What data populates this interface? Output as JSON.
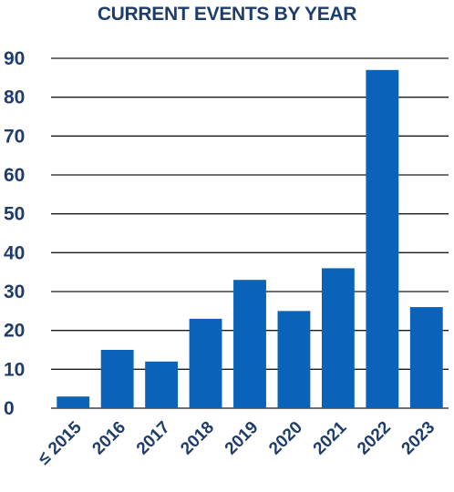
{
  "chart_data": {
    "type": "bar",
    "title": "CURRENT EVENTS BY YEAR",
    "xlabel": "",
    "ylabel": "",
    "categories": [
      "≤ 2015",
      "2016",
      "2017",
      "2018",
      "2019",
      "2020",
      "2021",
      "2022",
      "2023"
    ],
    "values": [
      3,
      15,
      12,
      23,
      33,
      25,
      36,
      87,
      26
    ],
    "ylim": [
      0,
      90
    ],
    "yticks": [
      0,
      10,
      20,
      30,
      40,
      50,
      60,
      70,
      80,
      90
    ],
    "grid": true,
    "legend": "none",
    "colors": {
      "bar": "#0a63b8",
      "title": "#1f3d6b",
      "text": "#1f3d6b",
      "grid": "#1a1a1a"
    }
  }
}
